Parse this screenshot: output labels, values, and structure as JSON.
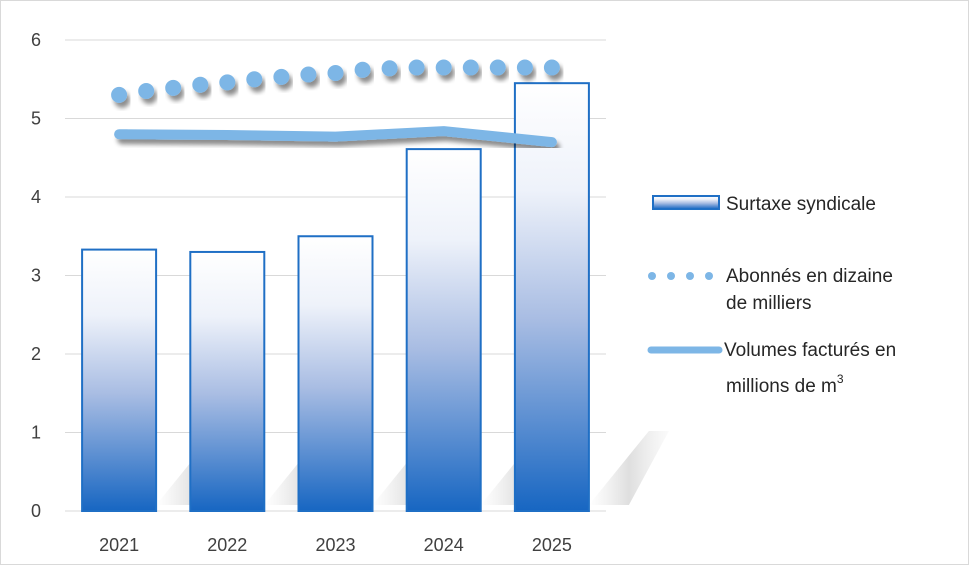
{
  "chart_data": {
    "type": "bar",
    "categories": [
      "2021",
      "2022",
      "2023",
      "2024",
      "2025"
    ],
    "ylim": [
      0,
      6
    ],
    "yticks": [
      "0",
      "1",
      "2",
      "3",
      "4",
      "5",
      "6"
    ],
    "grid": true,
    "legend_position": "right",
    "series": [
      {
        "name": "Surtaxe syndicale",
        "kind": "bar",
        "values": [
          3.33,
          3.3,
          3.5,
          4.61,
          5.45
        ],
        "color": "#1f6fc5"
      },
      {
        "name": "Abonnés en dizaine de milliers",
        "kind": "dotted-line",
        "x": [
          2021.0,
          2021.25,
          2021.5,
          2021.75,
          2022.0,
          2022.25,
          2022.5,
          2022.75,
          2023.0,
          2023.25,
          2023.5,
          2023.75,
          2024.0,
          2024.25,
          2024.5,
          2024.75,
          2025.0
        ],
        "values": [
          5.3,
          5.35,
          5.39,
          5.43,
          5.46,
          5.5,
          5.53,
          5.56,
          5.58,
          5.62,
          5.64,
          5.65,
          5.65,
          5.65,
          5.65,
          5.65,
          5.65
        ],
        "color": "#7db6e6"
      },
      {
        "name_line1": "Volumes facturés en",
        "name_line2": "millions de m",
        "name_sup": "3",
        "kind": "line",
        "x": [
          2021,
          2022,
          2023,
          2024,
          2025
        ],
        "values": [
          4.8,
          4.79,
          4.77,
          4.84,
          4.7
        ],
        "color": "#7db6e6"
      }
    ]
  },
  "legend": {
    "bar_label": "Surtaxe syndicale",
    "dots_label_line1": "Abonnés en dizaine",
    "dots_label_line2": "de milliers",
    "line_label_line1": "Volumes facturés en",
    "line_label_line2": "millions de m",
    "line_label_sup": "3"
  }
}
